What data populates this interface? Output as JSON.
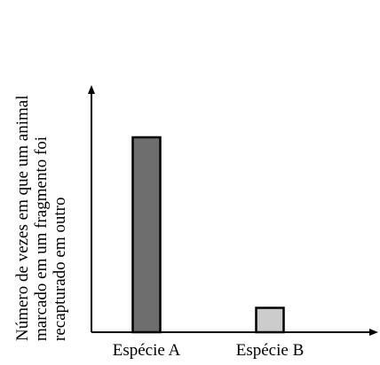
{
  "chart_data": {
    "type": "bar",
    "title": "",
    "xlabel": "",
    "ylabel_lines": [
      "Número de vezes em que um animal",
      "marcado em um fragmento foi",
      "recapturado em outro"
    ],
    "categories": [
      "Espécie A",
      "Espécie B"
    ],
    "values": [
      100,
      12.5
    ],
    "ylim": [
      0,
      100
    ],
    "y_ticks_shown": false,
    "grid": false,
    "legend": "none",
    "colors": {
      "bars": [
        "#6e6e6e",
        "#cccccc"
      ],
      "outline": "#000000",
      "axis": "#000000"
    }
  }
}
